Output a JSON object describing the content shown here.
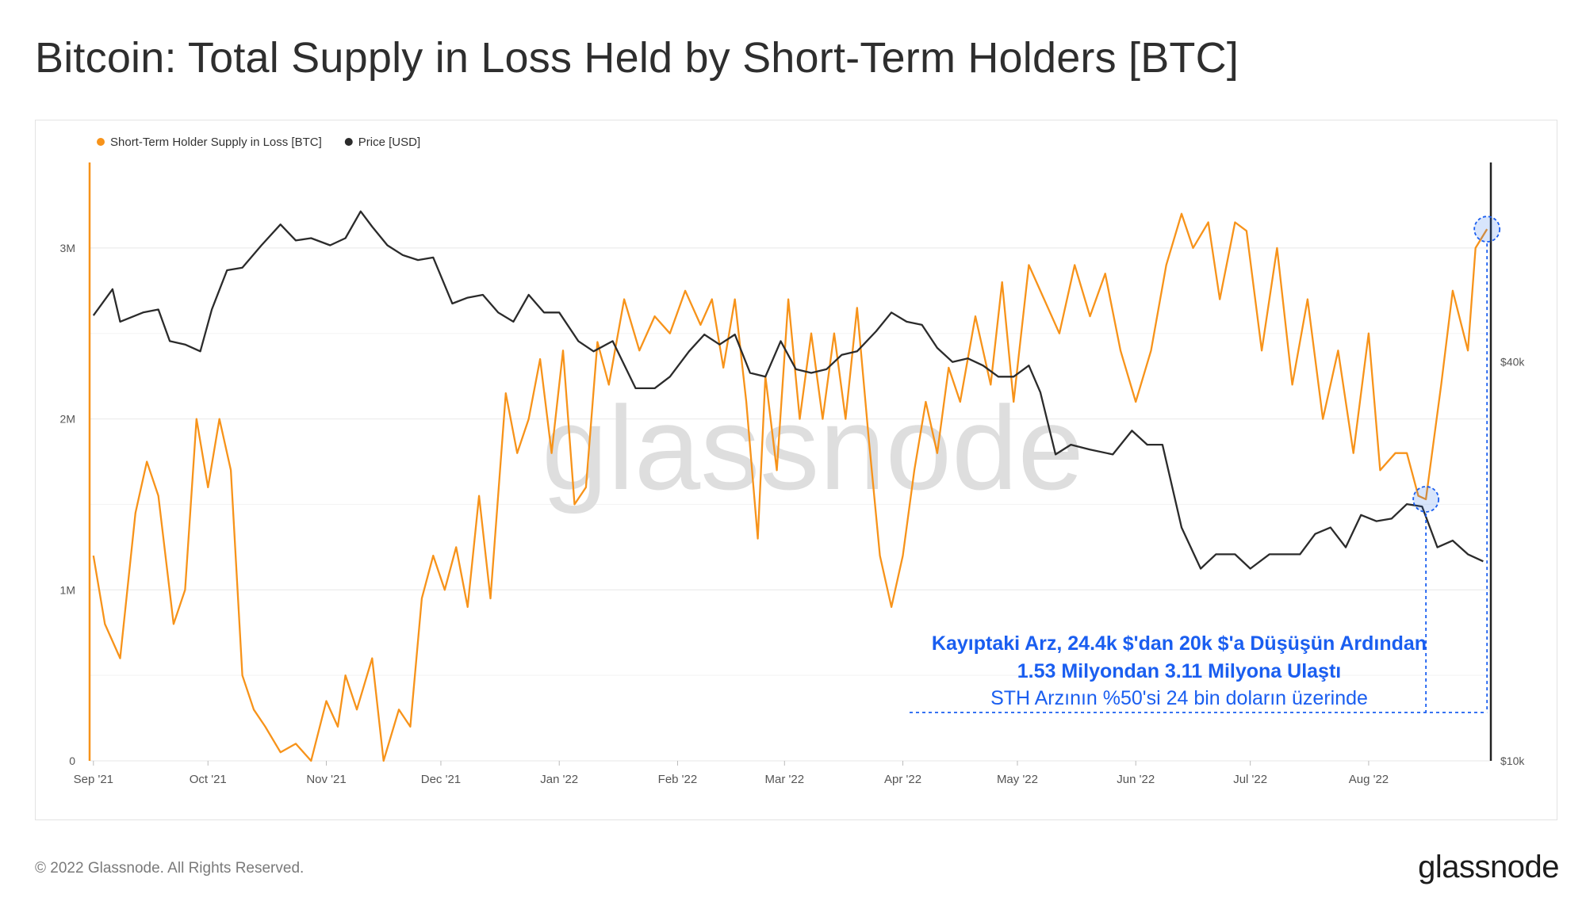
{
  "title": "Bitcoin: Total Supply in Loss Held by Short-Term Holders [BTC]",
  "footer": {
    "copyright": "© 2022 Glassnode. All Rights Reserved.",
    "logo": "glassnode"
  },
  "watermark": "glassnode",
  "colors": {
    "supply": "#f7931a",
    "price": "#2b2b2b",
    "annotation": "#1a5ef0",
    "grid": "#ececec",
    "axis_text": "#555555"
  },
  "chart_data": {
    "type": "line",
    "title": "Bitcoin: Total Supply in Loss Held by Short-Term Holders [BTC]",
    "x_ticks": [
      "Sep '21",
      "Oct '21",
      "Nov '21",
      "Dec '21",
      "Jan '22",
      "Feb '22",
      "Mar '22",
      "Apr '22",
      "May '22",
      "Jun '22",
      "Jul '22",
      "Aug '22"
    ],
    "y_left": {
      "ticks": [
        "0",
        "1M",
        "2M",
        "3M"
      ],
      "values": [
        0,
        1000000,
        2000000,
        3000000
      ],
      "range": [
        0,
        3500000
      ]
    },
    "y_right": {
      "ticks": [
        "$10k",
        "$40k"
      ],
      "values": [
        10000,
        40000
      ],
      "scale": "log",
      "range": [
        10000,
        80000
      ]
    },
    "legend": [
      {
        "label": "Short-Term Holder Supply in Loss [BTC]",
        "color": "#f7931a"
      },
      {
        "label": "Price [USD]",
        "color": "#2b2b2b"
      }
    ],
    "series": [
      {
        "name": "Short-Term Holder Supply in Loss [BTC]",
        "axis": "left",
        "points": [
          [
            "2021-09-01",
            1200000
          ],
          [
            "2021-09-04",
            800000
          ],
          [
            "2021-09-08",
            600000
          ],
          [
            "2021-09-12",
            1450000
          ],
          [
            "2021-09-15",
            1750000
          ],
          [
            "2021-09-18",
            1550000
          ],
          [
            "2021-09-22",
            800000
          ],
          [
            "2021-09-25",
            1000000
          ],
          [
            "2021-09-28",
            2000000
          ],
          [
            "2021-10-01",
            1600000
          ],
          [
            "2021-10-04",
            2000000
          ],
          [
            "2021-10-07",
            1700000
          ],
          [
            "2021-10-10",
            500000
          ],
          [
            "2021-10-13",
            300000
          ],
          [
            "2021-10-16",
            200000
          ],
          [
            "2021-10-20",
            50000
          ],
          [
            "2021-10-24",
            100000
          ],
          [
            "2021-10-28",
            0
          ],
          [
            "2021-11-01",
            350000
          ],
          [
            "2021-11-04",
            200000
          ],
          [
            "2021-11-06",
            500000
          ],
          [
            "2021-11-09",
            300000
          ],
          [
            "2021-11-13",
            600000
          ],
          [
            "2021-11-16",
            0
          ],
          [
            "2021-11-20",
            300000
          ],
          [
            "2021-11-23",
            200000
          ],
          [
            "2021-11-26",
            950000
          ],
          [
            "2021-11-29",
            1200000
          ],
          [
            "2021-12-02",
            1000000
          ],
          [
            "2021-12-05",
            1250000
          ],
          [
            "2021-12-08",
            900000
          ],
          [
            "2021-12-11",
            1550000
          ],
          [
            "2021-12-14",
            950000
          ],
          [
            "2021-12-18",
            2150000
          ],
          [
            "2021-12-21",
            1800000
          ],
          [
            "2021-12-24",
            2000000
          ],
          [
            "2021-12-27",
            2350000
          ],
          [
            "2021-12-30",
            1800000
          ],
          [
            "2022-01-02",
            2400000
          ],
          [
            "2022-01-05",
            1500000
          ],
          [
            "2022-01-08",
            1600000
          ],
          [
            "2022-01-11",
            2450000
          ],
          [
            "2022-01-14",
            2200000
          ],
          [
            "2022-01-18",
            2700000
          ],
          [
            "2022-01-22",
            2400000
          ],
          [
            "2022-01-26",
            2600000
          ],
          [
            "2022-01-30",
            2500000
          ],
          [
            "2022-02-03",
            2750000
          ],
          [
            "2022-02-07",
            2550000
          ],
          [
            "2022-02-10",
            2700000
          ],
          [
            "2022-02-13",
            2300000
          ],
          [
            "2022-02-16",
            2700000
          ],
          [
            "2022-02-19",
            2100000
          ],
          [
            "2022-02-22",
            1300000
          ],
          [
            "2022-02-24",
            2250000
          ],
          [
            "2022-02-27",
            1700000
          ],
          [
            "2022-03-02",
            2700000
          ],
          [
            "2022-03-05",
            2000000
          ],
          [
            "2022-03-08",
            2500000
          ],
          [
            "2022-03-11",
            2000000
          ],
          [
            "2022-03-14",
            2500000
          ],
          [
            "2022-03-17",
            2000000
          ],
          [
            "2022-03-20",
            2650000
          ],
          [
            "2022-03-23",
            1900000
          ],
          [
            "2022-03-26",
            1200000
          ],
          [
            "2022-03-29",
            900000
          ],
          [
            "2022-04-01",
            1200000
          ],
          [
            "2022-04-04",
            1700000
          ],
          [
            "2022-04-07",
            2100000
          ],
          [
            "2022-04-10",
            1800000
          ],
          [
            "2022-04-13",
            2300000
          ],
          [
            "2022-04-16",
            2100000
          ],
          [
            "2022-04-20",
            2600000
          ],
          [
            "2022-04-24",
            2200000
          ],
          [
            "2022-04-27",
            2800000
          ],
          [
            "2022-04-30",
            2100000
          ],
          [
            "2022-05-04",
            2900000
          ],
          [
            "2022-05-08",
            2700000
          ],
          [
            "2022-05-12",
            2500000
          ],
          [
            "2022-05-16",
            2900000
          ],
          [
            "2022-05-20",
            2600000
          ],
          [
            "2022-05-24",
            2850000
          ],
          [
            "2022-05-28",
            2400000
          ],
          [
            "2022-06-01",
            2100000
          ],
          [
            "2022-06-05",
            2400000
          ],
          [
            "2022-06-09",
            2900000
          ],
          [
            "2022-06-13",
            3200000
          ],
          [
            "2022-06-16",
            3000000
          ],
          [
            "2022-06-20",
            3150000
          ],
          [
            "2022-06-23",
            2700000
          ],
          [
            "2022-06-27",
            3150000
          ],
          [
            "2022-06-30",
            3100000
          ],
          [
            "2022-07-04",
            2400000
          ],
          [
            "2022-07-08",
            3000000
          ],
          [
            "2022-07-12",
            2200000
          ],
          [
            "2022-07-16",
            2700000
          ],
          [
            "2022-07-20",
            2000000
          ],
          [
            "2022-07-24",
            2400000
          ],
          [
            "2022-07-28",
            1800000
          ],
          [
            "2022-08-01",
            2500000
          ],
          [
            "2022-08-04",
            1700000
          ],
          [
            "2022-08-08",
            1800000
          ],
          [
            "2022-08-11",
            1800000
          ],
          [
            "2022-08-14",
            1550000
          ],
          [
            "2022-08-16",
            1530000
          ],
          [
            "2022-08-20",
            2200000
          ],
          [
            "2022-08-23",
            2750000
          ],
          [
            "2022-08-27",
            2400000
          ],
          [
            "2022-08-29",
            3000000
          ],
          [
            "2022-09-01",
            3110000
          ]
        ]
      },
      {
        "name": "Price [USD]",
        "axis": "right",
        "points": [
          [
            "2021-09-01",
            47000
          ],
          [
            "2021-09-06",
            51500
          ],
          [
            "2021-09-08",
            46000
          ],
          [
            "2021-09-14",
            47500
          ],
          [
            "2021-09-18",
            48000
          ],
          [
            "2021-09-21",
            43000
          ],
          [
            "2021-09-25",
            42500
          ],
          [
            "2021-09-29",
            41500
          ],
          [
            "2021-10-02",
            48000
          ],
          [
            "2021-10-06",
            55000
          ],
          [
            "2021-10-10",
            55500
          ],
          [
            "2021-10-15",
            60000
          ],
          [
            "2021-10-20",
            64500
          ],
          [
            "2021-10-24",
            61000
          ],
          [
            "2021-10-28",
            61500
          ],
          [
            "2021-11-02",
            60000
          ],
          [
            "2021-11-06",
            61500
          ],
          [
            "2021-11-10",
            67500
          ],
          [
            "2021-11-13",
            64000
          ],
          [
            "2021-11-17",
            60000
          ],
          [
            "2021-11-21",
            58000
          ],
          [
            "2021-11-25",
            57000
          ],
          [
            "2021-11-29",
            57500
          ],
          [
            "2021-12-04",
            49000
          ],
          [
            "2021-12-08",
            50000
          ],
          [
            "2021-12-12",
            50500
          ],
          [
            "2021-12-16",
            47500
          ],
          [
            "2021-12-20",
            46000
          ],
          [
            "2021-12-24",
            50500
          ],
          [
            "2021-12-28",
            47500
          ],
          [
            "2022-01-01",
            47500
          ],
          [
            "2022-01-06",
            43000
          ],
          [
            "2022-01-10",
            41500
          ],
          [
            "2022-01-15",
            43000
          ],
          [
            "2022-01-21",
            36500
          ],
          [
            "2022-01-26",
            36500
          ],
          [
            "2022-01-30",
            38000
          ],
          [
            "2022-02-04",
            41500
          ],
          [
            "2022-02-08",
            44000
          ],
          [
            "2022-02-12",
            42500
          ],
          [
            "2022-02-16",
            44000
          ],
          [
            "2022-02-20",
            38500
          ],
          [
            "2022-02-24",
            38000
          ],
          [
            "2022-02-28",
            43000
          ],
          [
            "2022-03-04",
            39000
          ],
          [
            "2022-03-08",
            38500
          ],
          [
            "2022-03-12",
            39000
          ],
          [
            "2022-03-16",
            41000
          ],
          [
            "2022-03-20",
            41500
          ],
          [
            "2022-03-25",
            44500
          ],
          [
            "2022-03-29",
            47500
          ],
          [
            "2022-04-02",
            46000
          ],
          [
            "2022-04-06",
            45500
          ],
          [
            "2022-04-10",
            42000
          ],
          [
            "2022-04-14",
            40000
          ],
          [
            "2022-04-18",
            40500
          ],
          [
            "2022-04-22",
            39500
          ],
          [
            "2022-04-26",
            38000
          ],
          [
            "2022-04-30",
            38000
          ],
          [
            "2022-05-04",
            39500
          ],
          [
            "2022-05-07",
            36000
          ],
          [
            "2022-05-11",
            29000
          ],
          [
            "2022-05-15",
            30000
          ],
          [
            "2022-05-20",
            29500
          ],
          [
            "2022-05-26",
            29000
          ],
          [
            "2022-05-31",
            31500
          ],
          [
            "2022-06-04",
            30000
          ],
          [
            "2022-06-08",
            30000
          ],
          [
            "2022-06-13",
            22500
          ],
          [
            "2022-06-18",
            19500
          ],
          [
            "2022-06-22",
            20500
          ],
          [
            "2022-06-27",
            20500
          ],
          [
            "2022-07-01",
            19500
          ],
          [
            "2022-07-06",
            20500
          ],
          [
            "2022-07-10",
            20500
          ],
          [
            "2022-07-14",
            20500
          ],
          [
            "2022-07-18",
            22000
          ],
          [
            "2022-07-22",
            22500
          ],
          [
            "2022-07-26",
            21000
          ],
          [
            "2022-07-30",
            23500
          ],
          [
            "2022-08-03",
            23000
          ],
          [
            "2022-08-07",
            23200
          ],
          [
            "2022-08-11",
            24400
          ],
          [
            "2022-08-15",
            24200
          ],
          [
            "2022-08-19",
            21000
          ],
          [
            "2022-08-23",
            21500
          ],
          [
            "2022-08-27",
            20500
          ],
          [
            "2022-08-31",
            20000
          ]
        ]
      }
    ],
    "markers": [
      {
        "series": "Short-Term Holder Supply in Loss [BTC]",
        "date": "2022-08-16",
        "value": 1530000
      },
      {
        "series": "Short-Term Holder Supply in Loss [BTC]",
        "date": "2022-09-01",
        "value": 3110000
      }
    ],
    "annotation": {
      "line1": "Kayıptaki Arz, 24.4k $'dan 20k $'a Düşüşün Ardından",
      "line2": "1.53 Milyondan 3.11 Milyona Ulaştı",
      "line3": "STH Arzının %50'si 24 bin doların üzerinde"
    }
  }
}
